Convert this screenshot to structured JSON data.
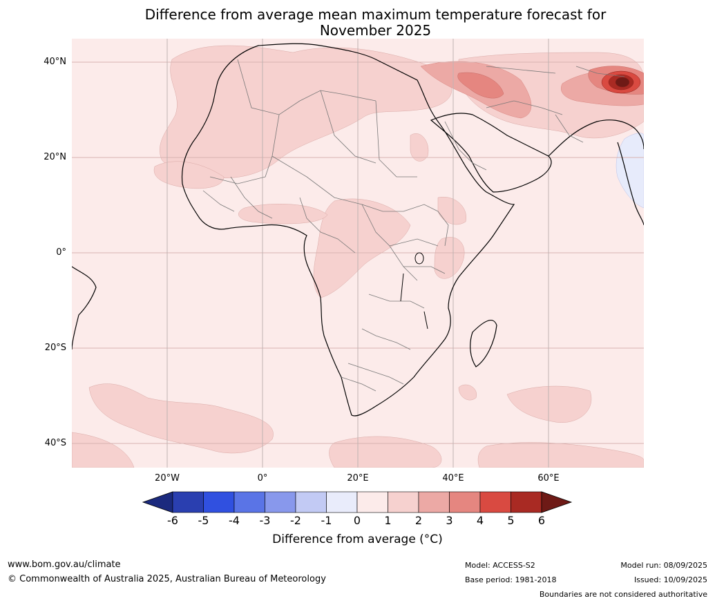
{
  "title": {
    "line1": "Difference from average mean maximum temperature forecast for",
    "line2": "November 2025"
  },
  "map": {
    "region": "Africa",
    "lat_labels": [
      "40°N",
      "20°N",
      "0°",
      "20°S",
      "40°S"
    ],
    "lon_labels": [
      "20°W",
      "0°",
      "20°E",
      "40°E",
      "60°E"
    ]
  },
  "colorbar": {
    "title": "Difference from average (°C)",
    "ticks": [
      "-6",
      "-5",
      "-4",
      "-3",
      "-2",
      "-1",
      "0",
      "1",
      "2",
      "3",
      "4",
      "5",
      "6"
    ],
    "colors": [
      "#1b2a7e",
      "#2a3fb0",
      "#3050e0",
      "#5a74e6",
      "#8898ec",
      "#c2caf4",
      "#e9ecfb",
      "#fcebea",
      "#f6d1cf",
      "#eca9a5",
      "#e58680",
      "#d94a41",
      "#a92a23",
      "#6e1a16"
    ]
  },
  "footer": {
    "website": "www.bom.gov.au/climate",
    "copyright": "© Commonwealth of Australia 2025, Australian Bureau of Meteorology",
    "model": "Model: ACCESS-S2",
    "base_period": "Base period: 1981-2018",
    "model_run": "Model run: 08/09/2025",
    "issued": "Issued: 10/09/2025",
    "disclaimer": "Boundaries are not considered authoritative"
  }
}
